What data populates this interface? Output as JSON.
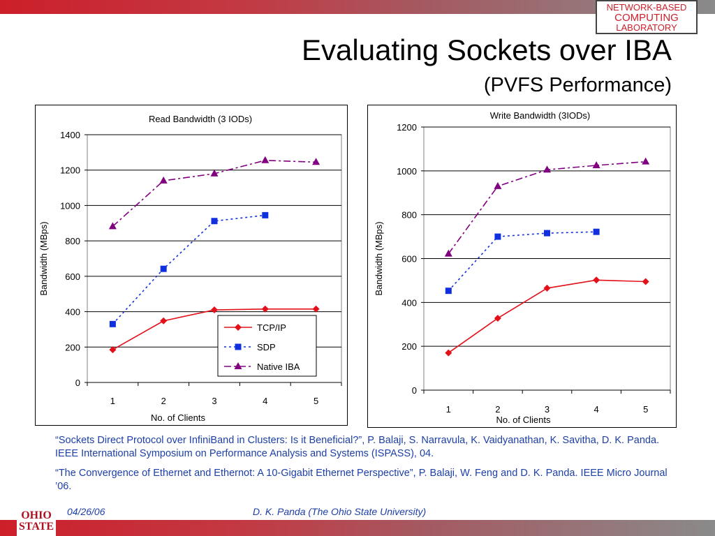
{
  "header": {
    "logo_lines": [
      "NETWORK-BASED",
      "COMPUTING",
      "LABORATORY"
    ],
    "title": "Evaluating Sockets over IBA",
    "subtitle": "(PVFS Performance)"
  },
  "colors": {
    "tcp": "#e3101a",
    "sdp": "#1030e0",
    "native": "#800080",
    "accent": "#cc1f2a"
  },
  "chart_data": [
    {
      "type": "line",
      "title": "Read Bandwidth (3 IODs)",
      "xlabel": "No. of Clients",
      "ylabel": "Bandwidth (MBps)",
      "categories": [
        "1",
        "2",
        "3",
        "4",
        "5"
      ],
      "ylim": [
        0,
        1400
      ],
      "yticks": [
        "0",
        "200",
        "400",
        "600",
        "800",
        "1000",
        "1200",
        "1400"
      ],
      "grid": true,
      "legend_position": "bottom-right-inside",
      "series": [
        {
          "name": "TCP/IP",
          "marker": "diamond",
          "values": [
            185,
            348,
            410,
            415,
            415
          ]
        },
        {
          "name": "SDP",
          "marker": "square",
          "values": [
            330,
            642,
            912,
            945,
            null
          ]
        },
        {
          "name": "Native IBA",
          "marker": "triangle",
          "values": [
            882,
            1140,
            1180,
            1255,
            1245
          ]
        }
      ]
    },
    {
      "type": "line",
      "title": "Write Bandwidth (3IODs)",
      "xlabel": "No. of Clients",
      "ylabel": "Bandwidth (MBps)",
      "categories": [
        "1",
        "2",
        "3",
        "4",
        "5"
      ],
      "ylim": [
        0,
        1200
      ],
      "yticks": [
        "0",
        "200",
        "400",
        "600",
        "800",
        "1000",
        "1200"
      ],
      "grid": true,
      "legend_position": "none",
      "series": [
        {
          "name": "TCP/IP",
          "marker": "diamond",
          "values": [
            170,
            328,
            465,
            502,
            495
          ]
        },
        {
          "name": "SDP",
          "marker": "square",
          "values": [
            453,
            700,
            716,
            722,
            null
          ]
        },
        {
          "name": "Native IBA",
          "marker": "triangle",
          "values": [
            622,
            930,
            1005,
            1025,
            1042
          ]
        }
      ]
    }
  ],
  "references": [
    "“Sockets Direct Protocol over InfiniBand in Clusters: Is it Beneficial?”, P. Balaji, S. Narravula, K. Vaidyanathan, K. Savitha, D. K. Panda. IEEE International Symposium on Performance Analysis and Systems (ISPASS), 04.",
    "“The Convergence of Ethernet and Ethernot: A 10-Gigabit Ethernet Perspective”, P. Balaji, W. Feng and D. K. Panda. IEEE Micro Journal ’06."
  ],
  "footer": {
    "logo_lines": [
      "OHIO",
      "STATE"
    ],
    "date": "04/26/06",
    "author": "D. K. Panda (The Ohio State University)"
  }
}
